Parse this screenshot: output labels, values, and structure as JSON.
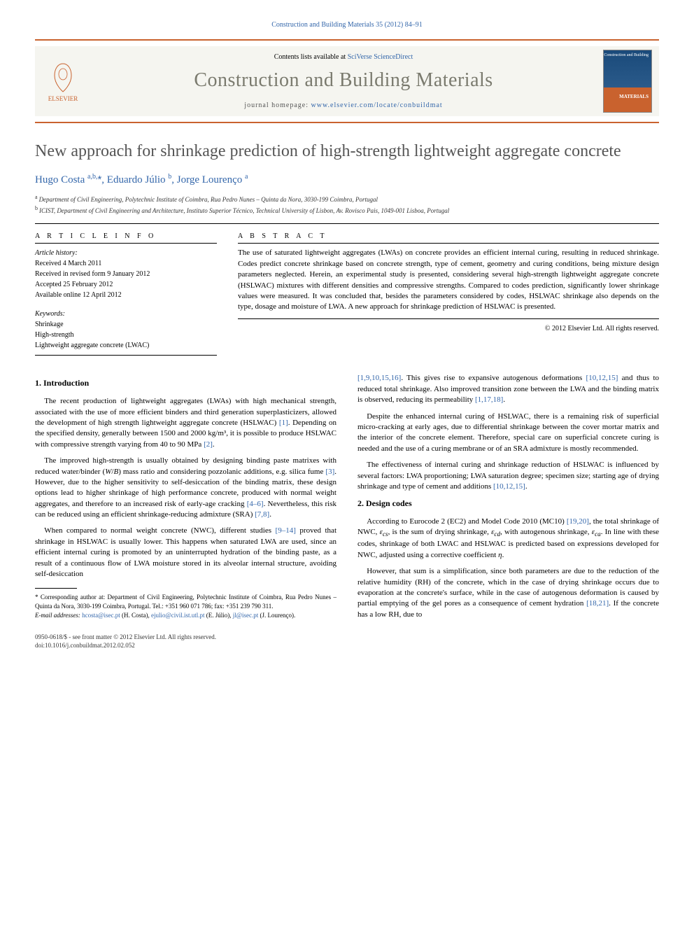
{
  "header_ref": "Construction and Building Materials 35 (2012) 84–91",
  "masthead": {
    "contents_prefix": "Contents lists available at ",
    "contents_link": "SciVerse ScienceDirect",
    "journal": "Construction and Building Materials",
    "homepage_prefix": "journal homepage: ",
    "homepage_url": "www.elsevier.com/locate/conbuildmat",
    "publisher_name": "ELSEVIER",
    "cover_top": "Construction\nand Building",
    "cover_bottom": "MATERIALS"
  },
  "title": "New approach for shrinkage prediction of high-strength lightweight aggregate concrete",
  "authors_html": "Hugo Costa <sup>a,b,</sup><span class='asterisk'>*</span>, Eduardo Júlio <sup>b</sup>, Jorge Lourenço <sup>a</sup>",
  "affiliations": {
    "a": "Department of Civil Engineering, Polytechnic Institute of Coimbra, Rua Pedro Nunes – Quinta da Nora, 3030-199 Coimbra, Portugal",
    "b": "ICIST, Department of Civil Engineering and Architecture, Instituto Superior Técnico, Technical University of Lisbon, Av. Rovisco Pais, 1049-001 Lisboa, Portugal"
  },
  "info": {
    "heading": "A R T I C L E   I N F O",
    "history_label": "Article history:",
    "received": "Received 4 March 2011",
    "revised": "Received in revised form 9 January 2012",
    "accepted": "Accepted 25 February 2012",
    "online": "Available online 12 April 2012",
    "keywords_label": "Keywords:",
    "keywords": [
      "Shrinkage",
      "High-strength",
      "Lightweight aggregate concrete (LWAC)"
    ]
  },
  "abstract": {
    "heading": "A B S T R A C T",
    "text": "The use of saturated lightweight aggregates (LWAs) on concrete provides an efficient internal curing, resulting in reduced shrinkage. Codes predict concrete shrinkage based on concrete strength, type of cement, geometry and curing conditions, being mixture design parameters neglected. Herein, an experimental study is presented, considering several high-strength lightweight aggregate concrete (HSLWAC) mixtures with different densities and compressive strengths. Compared to codes prediction, significantly lower shrinkage values were measured. It was concluded that, besides the parameters considered by codes, HSLWAC shrinkage also depends on the type, dosage and moisture of LWA. A new approach for shrinkage prediction of HSLWAC is presented.",
    "copyright": "© 2012 Elsevier Ltd. All rights reserved."
  },
  "sections": {
    "intro_heading": "1. Introduction",
    "intro_p1": "The recent production of lightweight aggregates (LWAs) with high mechanical strength, associated with the use of more efficient binders and third generation superplasticizers, allowed the development of high strength lightweight aggregate concrete (HSLWAC) [1]. Depending on the specified density, generally between 1500 and 2000 kg/m³, it is possible to produce HSLWAC with compressive strength varying from 40 to 90 MPa [2].",
    "intro_p2": "The improved high-strength is usually obtained by designing binding paste matrixes with reduced water/binder (W/B) mass ratio and considering pozzolanic additions, e.g. silica fume [3]. However, due to the higher sensitivity to self-desiccation of the binding matrix, these design options lead to higher shrinkage of high performance concrete, produced with normal weight aggregates, and therefore to an increased risk of early-age cracking [4–6]. Nevertheless, this risk can be reduced using an efficient shrinkage-reducing admixture (SRA) [7,8].",
    "intro_p3": "When compared to normal weight concrete (NWC), different studies [9–14] proved that shrinkage in HSLWAC is usually lower. This happens when saturated LWA are used, since an efficient internal curing is promoted by an uninterrupted hydration of the binding paste, as a result of a continuous flow of LWA moisture stored in its alveolar internal structure, avoiding self-desiccation",
    "col2_p1": "[1,9,10,15,16]. This gives rise to expansive autogenous deformations [10,12,15] and thus to reduced total shrinkage. Also improved transition zone between the LWA and the binding matrix is observed, reducing its permeability [1,17,18].",
    "col2_p2": "Despite the enhanced internal curing of HSLWAC, there is a remaining risk of superficial micro-cracking at early ages, due to differential shrinkage between the cover mortar matrix and the interior of the concrete element. Therefore, special care on superficial concrete curing is needed and the use of a curing membrane or of an SRA admixture is mostly recommended.",
    "col2_p3": "The effectiveness of internal curing and shrinkage reduction of HSLWAC is influenced by several factors: LWA proportioning; LWA saturation degree; specimen size; starting age of drying shrinkage and type of cement and additions [10,12,15].",
    "design_heading": "2. Design codes",
    "design_p1": "According to Eurocode 2 (EC2) and Model Code 2010 (MC10) [19,20], the total shrinkage of NWC, εcs, is the sum of drying shrinkage, εcd, with autogenous shrinkage, εca. In line with these codes, shrinkage of both LWAC and HSLWAC is predicted based on expressions developed for NWC, adjusted using a corrective coefficient η.",
    "design_p2": "However, that sum is a simplification, since both parameters are due to the reduction of the relative humidity (RH) of the concrete, which in the case of drying shrinkage occurs due to evaporation at the concrete's surface, while in the case of autogenous deformation is caused by partial emptying of the gel pores as a consequence of cement hydration [18,21]. If the concrete has a low RH, due to"
  },
  "footnotes": {
    "corresp": "* Corresponding author at: Department of Civil Engineering, Polytechnic Institute of Coimbra, Rua Pedro Nunes – Quinta da Nora, 3030-199 Coimbra, Portugal. Tel.: +351 960 071 786; fax: +351 239 790 311.",
    "emails_label": "E-mail addresses:",
    "email1": "hcosta@isec.pt",
    "name1": "(H. Costa),",
    "email2": "ejulio@civil.ist.utl.pt",
    "name2": "(E. Júlio),",
    "email3": "jl@isec.pt",
    "name3": "(J. Lourenço)."
  },
  "footer": {
    "issn": "0950-0618/$ - see front matter © 2012 Elsevier Ltd. All rights reserved.",
    "doi": "doi:10.1016/j.conbuildmat.2012.02.052"
  }
}
